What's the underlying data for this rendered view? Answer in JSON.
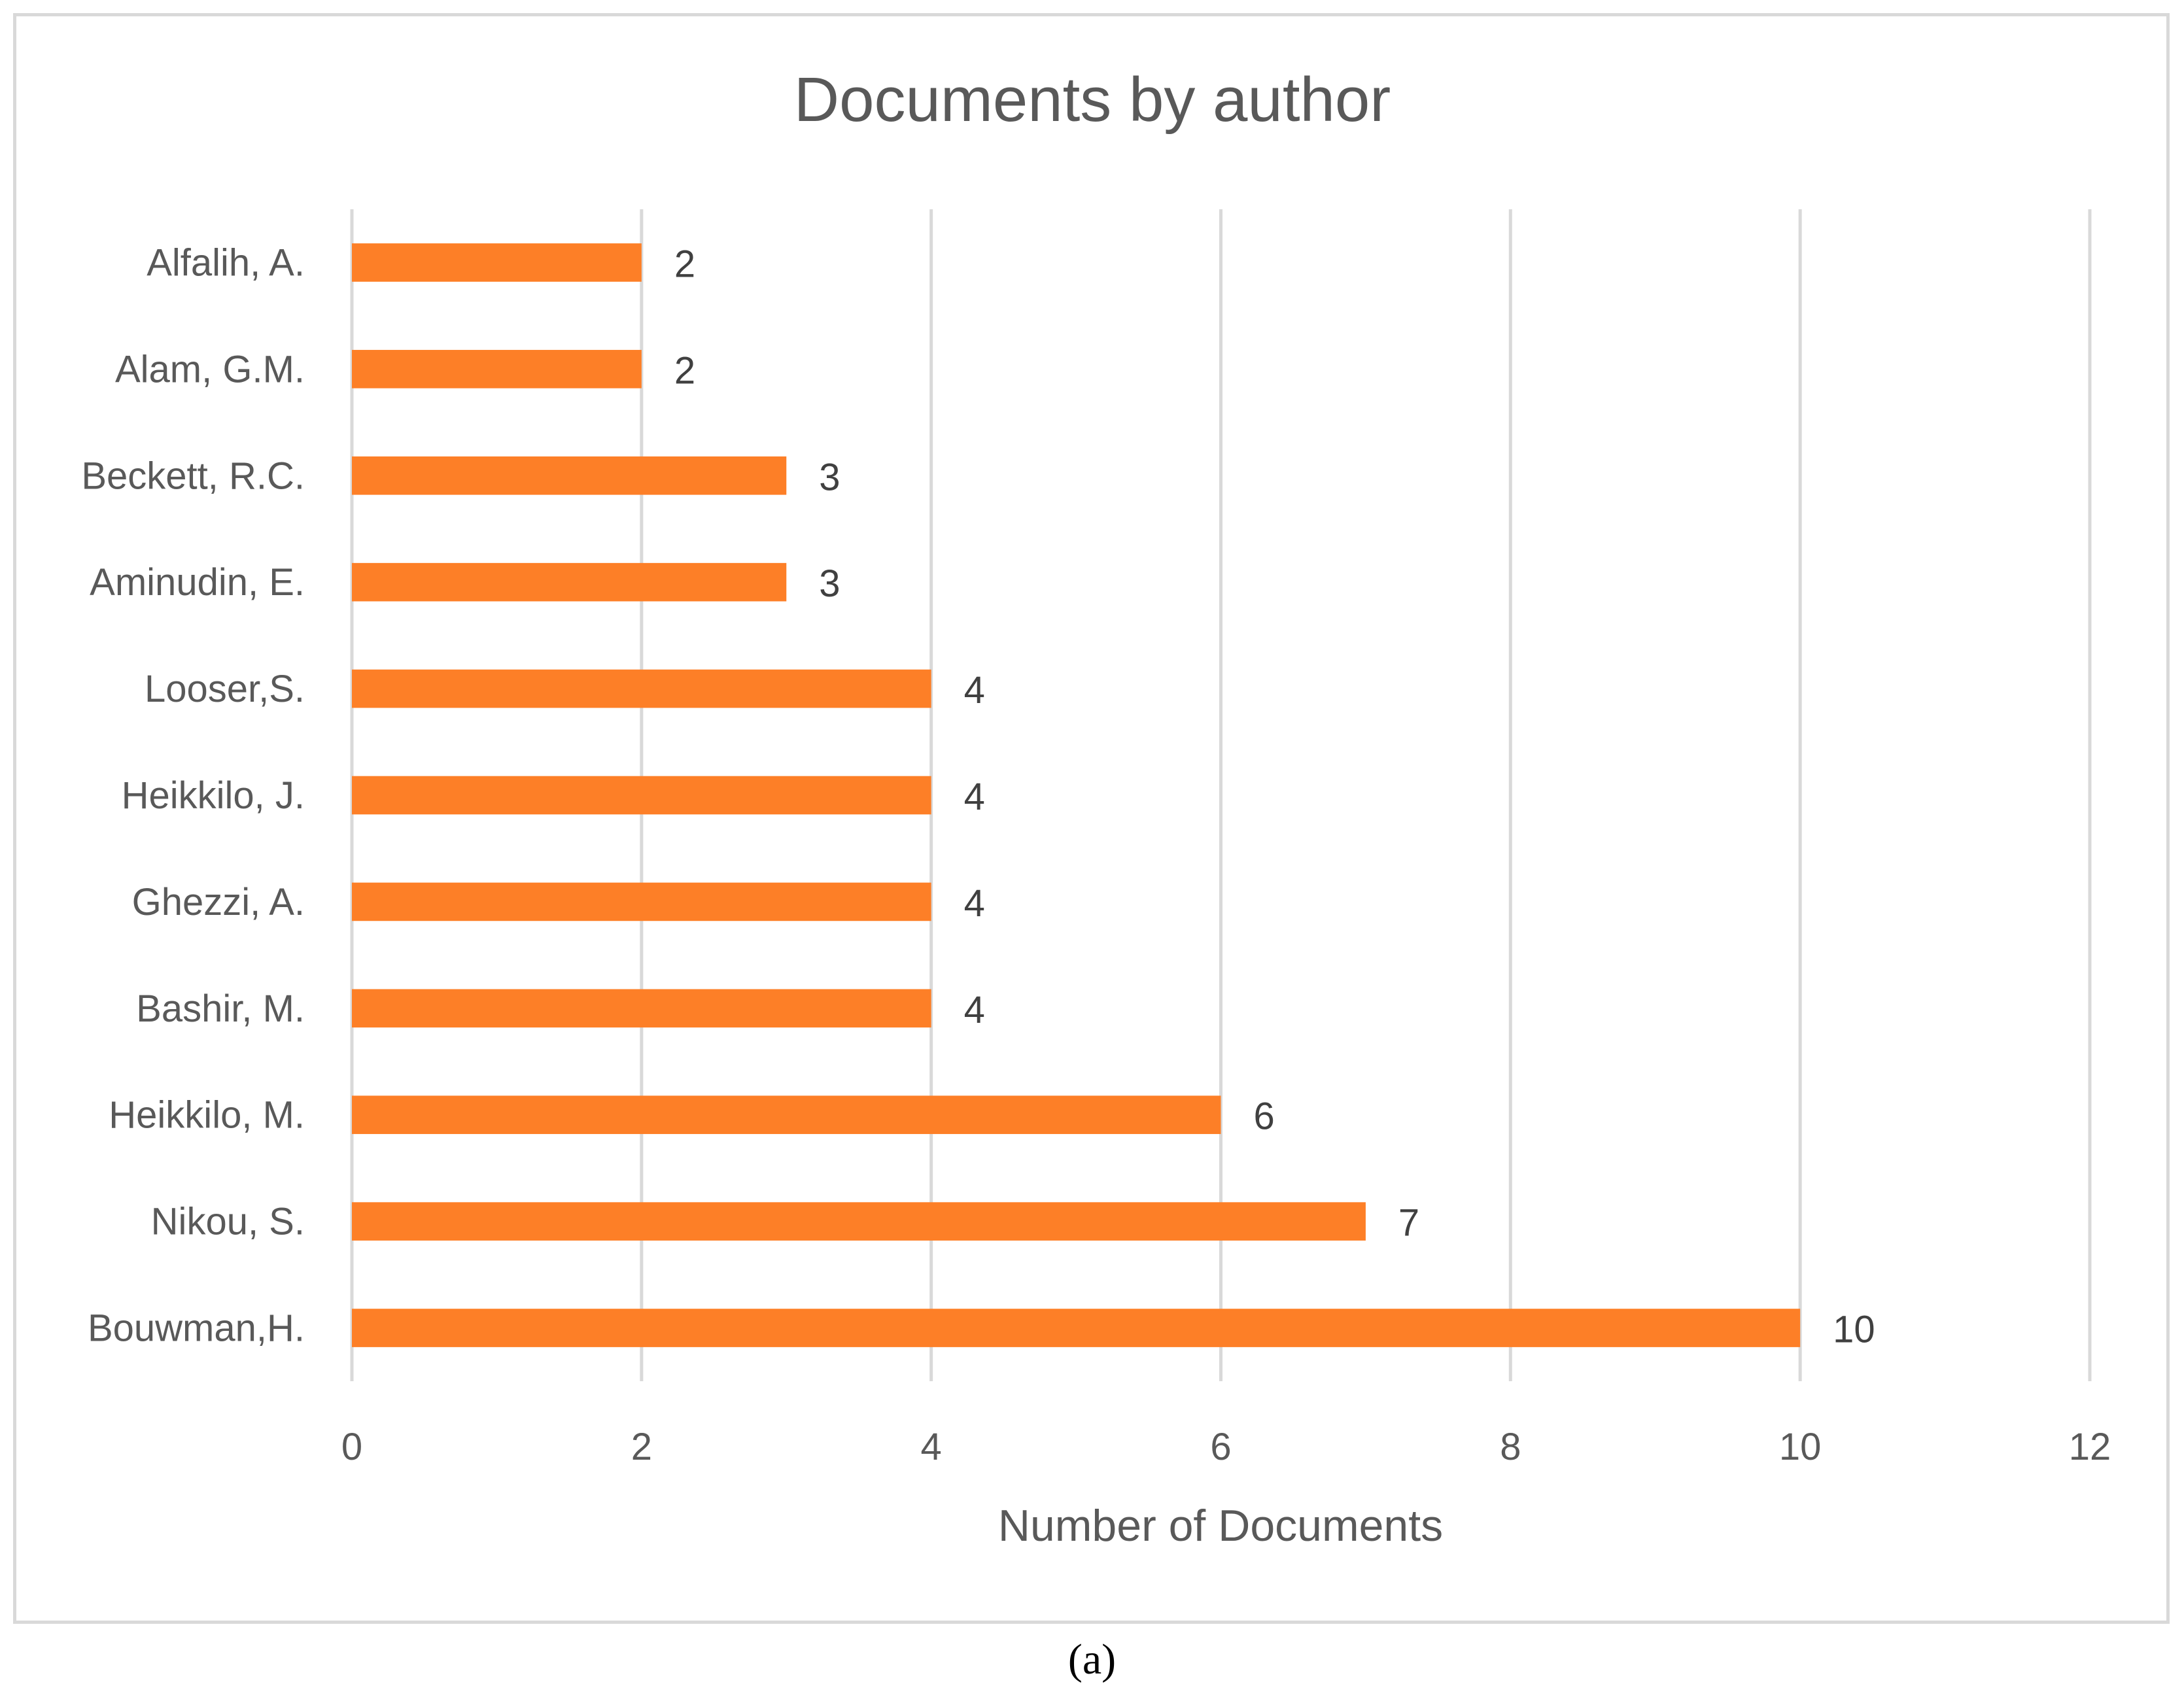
{
  "caption": "(a)",
  "colors": {
    "bar": "#fd7f27",
    "grid": "#d9d9d9",
    "text": "#595959",
    "frame": "#d9d9d9"
  },
  "chart_data": {
    "type": "bar",
    "orientation": "horizontal",
    "title": "Documents by author",
    "xlabel": "Number of Documents",
    "ylabel": "",
    "categories": [
      "Alfalih, A.",
      "Alam, G.M.",
      "Beckett, R.C.",
      "Aminudin, E.",
      "Looser,S.",
      "Heikkilo, J.",
      "Ghezzi, A.",
      "Bashir, M.",
      "Heikkilo, M.",
      "Nikou, S.",
      "Bouwman,H."
    ],
    "values": [
      2,
      2,
      3,
      3,
      4,
      4,
      4,
      4,
      6,
      7,
      10
    ],
    "data_labels": [
      "2",
      "2",
      "3",
      "3",
      "4",
      "4",
      "4",
      "4",
      "6",
      "7",
      "10"
    ],
    "xlim": [
      0,
      12
    ],
    "xticks": [
      0,
      2,
      4,
      6,
      8,
      10,
      12
    ],
    "xtick_labels": [
      "0",
      "2",
      "4",
      "6",
      "8",
      "10",
      "12"
    ],
    "grid": true,
    "legend": "none"
  }
}
